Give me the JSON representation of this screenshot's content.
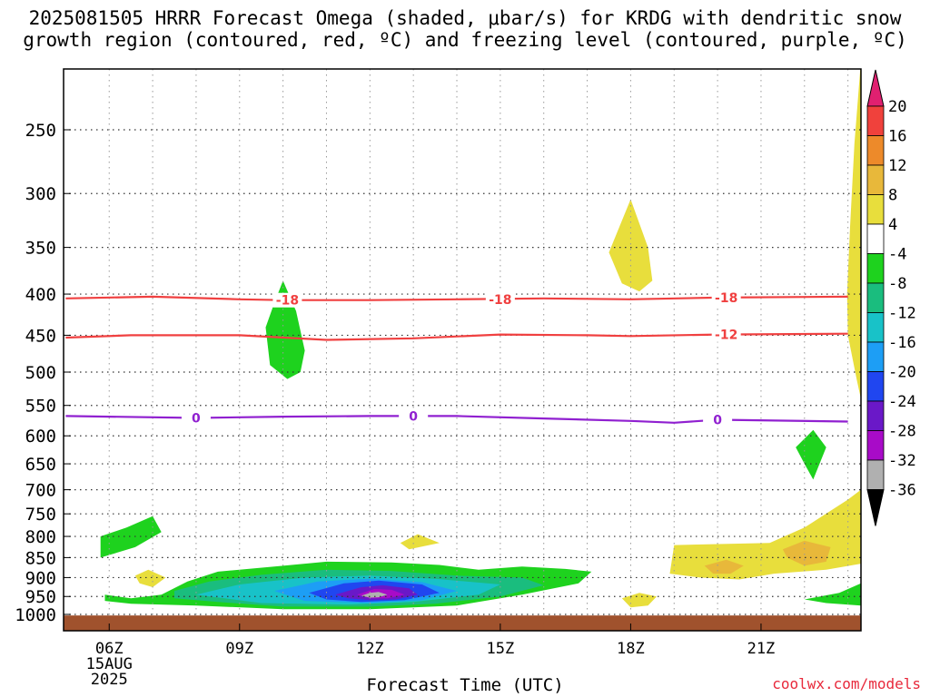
{
  "title_line1": "2025081505 HRRR Forecast Omega (shaded, μbar/s) for KRDG with dendritic snow",
  "title_line2": "growth region (contoured, red, ºC) and freezing level (contoured, purple, ºC)",
  "watermark": "coolwx.com/models",
  "chart_data": {
    "type": "heatmap",
    "xlabel": "Forecast Time (UTC)",
    "ylabel": "",
    "x_ticks": [
      "06Z",
      "09Z",
      "12Z",
      "15Z",
      "18Z",
      "21Z"
    ],
    "x_date_label": [
      "15AUG",
      "2025"
    ],
    "y_ticks": [
      250,
      300,
      350,
      400,
      450,
      500,
      550,
      600,
      650,
      700,
      750,
      800,
      850,
      900,
      950,
      1000
    ],
    "y_range_hpa": [
      200,
      1020
    ],
    "y_scale": "log",
    "grid": true,
    "colorbar": {
      "levels": [
        20,
        16,
        12,
        8,
        4,
        -4,
        -8,
        -12,
        -16,
        -20,
        -24,
        -28,
        -32,
        -36
      ],
      "colors": [
        "#e02070",
        "#f0413c",
        "#ed8a2a",
        "#e8b83a",
        "#e8de3c",
        "#ffffff",
        "#1ed21e",
        "#1abd7e",
        "#18c2c8",
        "#1d9ef5",
        "#2046f0",
        "#6a18c8",
        "#a80bc8",
        "#b0b0b0",
        "#000000"
      ]
    },
    "contours": [
      {
        "name": "dendritic snow growth -18",
        "color": "#f04040",
        "label": "-18",
        "points": [
          [
            5.0,
            405
          ],
          [
            7.0,
            403
          ],
          [
            9.0,
            406
          ],
          [
            10.0,
            407
          ],
          [
            12.0,
            407
          ],
          [
            14.0,
            406
          ],
          [
            16.0,
            405
          ],
          [
            18.0,
            406
          ],
          [
            20.0,
            404
          ],
          [
            23.0,
            403
          ]
        ]
      },
      {
        "name": "dendritic snow growth -12",
        "color": "#f04040",
        "label": "-12",
        "points": [
          [
            5.0,
            453
          ],
          [
            6.5,
            450
          ],
          [
            9.0,
            450
          ],
          [
            11.0,
            456
          ],
          [
            13.0,
            454
          ],
          [
            15.0,
            449
          ],
          [
            17.0,
            450
          ],
          [
            18.0,
            451
          ],
          [
            20.0,
            449
          ],
          [
            23.0,
            448
          ]
        ]
      },
      {
        "name": "freezing level 0",
        "color": "#9020d0",
        "label": "0",
        "points": [
          [
            5.0,
            567
          ],
          [
            8.0,
            570
          ],
          [
            10.0,
            568
          ],
          [
            12.0,
            567
          ],
          [
            14.0,
            567
          ],
          [
            16.0,
            571
          ],
          [
            18.0,
            575
          ],
          [
            19.0,
            578
          ],
          [
            20.0,
            573
          ],
          [
            23.0,
            576
          ]
        ]
      }
    ],
    "contour_label_positions": [
      {
        "label": "-18",
        "x": 10.1,
        "y": 407
      },
      {
        "label": "-18",
        "x": 15.0,
        "y": 406
      },
      {
        "label": "-18",
        "x": 20.2,
        "y": 404
      },
      {
        "label": "-12",
        "x": 20.2,
        "y": 449
      },
      {
        "label": "0",
        "x": 8.0,
        "y": 570
      },
      {
        "label": "0",
        "x": 13.0,
        "y": 567
      },
      {
        "label": "0",
        "x": 20.0,
        "y": 573
      }
    ],
    "omega_regions": [
      {
        "level": -4,
        "color": "#1ed21e",
        "points": [
          [
            10.0,
            385
          ],
          [
            10.3,
            420
          ],
          [
            10.5,
            470
          ],
          [
            10.4,
            500
          ],
          [
            10.1,
            510
          ],
          [
            9.7,
            490
          ],
          [
            9.6,
            440
          ],
          [
            9.8,
            410
          ]
        ]
      },
      {
        "level": -4,
        "color": "#1ed21e",
        "points": [
          [
            5.8,
            800
          ],
          [
            6.4,
            780
          ],
          [
            7.0,
            755
          ],
          [
            7.2,
            790
          ],
          [
            6.6,
            825
          ],
          [
            5.8,
            850
          ]
        ]
      },
      {
        "level": -4,
        "color": "#1ed21e",
        "points": [
          [
            5.9,
            945
          ],
          [
            6.5,
            955
          ],
          [
            7.2,
            945
          ],
          [
            7.8,
            910
          ],
          [
            8.5,
            885
          ],
          [
            10.0,
            870
          ],
          [
            11.0,
            860
          ],
          [
            12.5,
            862
          ],
          [
            13.6,
            868
          ],
          [
            14.5,
            880
          ],
          [
            15.5,
            872
          ],
          [
            16.5,
            878
          ],
          [
            17.1,
            885
          ],
          [
            16.8,
            915
          ],
          [
            15.5,
            945
          ],
          [
            14.0,
            975
          ],
          [
            12.0,
            985
          ],
          [
            10.0,
            985
          ],
          [
            8.0,
            975
          ],
          [
            6.5,
            970
          ],
          [
            5.9,
            962
          ]
        ]
      },
      {
        "level": -4,
        "color": "#1ed21e",
        "points": [
          [
            22.2,
            590
          ],
          [
            22.5,
            620
          ],
          [
            22.2,
            680
          ],
          [
            22.0,
            650
          ],
          [
            21.8,
            620
          ]
        ]
      },
      {
        "level": -4,
        "color": "#1ed21e",
        "points": [
          [
            22.0,
            958
          ],
          [
            22.8,
            940
          ],
          [
            23.3,
            915
          ],
          [
            23.3,
            975
          ],
          [
            22.5,
            968
          ]
        ]
      },
      {
        "level": -8,
        "color": "#1abd7e",
        "points": [
          [
            7.5,
            935
          ],
          [
            8.3,
            910
          ],
          [
            9.5,
            893
          ],
          [
            11.0,
            880
          ],
          [
            12.5,
            883
          ],
          [
            14.0,
            895
          ],
          [
            15.5,
            900
          ],
          [
            16.0,
            920
          ],
          [
            15.0,
            950
          ],
          [
            13.5,
            970
          ],
          [
            12.0,
            978
          ],
          [
            10.0,
            978
          ],
          [
            8.5,
            965
          ],
          [
            7.5,
            955
          ]
        ]
      },
      {
        "level": -12,
        "color": "#18c2c8",
        "points": [
          [
            8.0,
            945
          ],
          [
            9.0,
            918
          ],
          [
            10.5,
            900
          ],
          [
            12.0,
            895
          ],
          [
            13.5,
            903
          ],
          [
            15.0,
            918
          ],
          [
            14.5,
            945
          ],
          [
            13.0,
            965
          ],
          [
            11.5,
            972
          ],
          [
            9.5,
            968
          ]
        ]
      },
      {
        "level": -16,
        "color": "#1d9ef5",
        "points": [
          [
            9.8,
            935
          ],
          [
            10.8,
            910
          ],
          [
            12.0,
            903
          ],
          [
            13.2,
            912
          ],
          [
            14.0,
            935
          ],
          [
            13.2,
            960
          ],
          [
            12.0,
            968
          ],
          [
            10.5,
            962
          ]
        ]
      },
      {
        "level": -20,
        "color": "#2046f0",
        "points": [
          [
            10.6,
            940
          ],
          [
            11.4,
            915
          ],
          [
            12.2,
            908
          ],
          [
            13.2,
            918
          ],
          [
            13.6,
            940
          ],
          [
            12.8,
            960
          ],
          [
            11.8,
            965
          ],
          [
            11.0,
            958
          ]
        ]
      },
      {
        "level": -24,
        "color": "#6a18c8",
        "points": [
          [
            11.2,
            945
          ],
          [
            11.8,
            925
          ],
          [
            12.3,
            920
          ],
          [
            12.9,
            928
          ],
          [
            13.1,
            945
          ],
          [
            12.6,
            958
          ],
          [
            12.0,
            960
          ],
          [
            11.5,
            955
          ]
        ]
      },
      {
        "level": -28,
        "color": "#a80bc8",
        "points": [
          [
            11.7,
            945
          ],
          [
            12.1,
            930
          ],
          [
            12.5,
            932
          ],
          [
            12.8,
            945
          ],
          [
            12.4,
            955
          ],
          [
            12.0,
            955
          ]
        ]
      },
      {
        "level": -32,
        "color": "#b0b0b0",
        "points": [
          [
            11.8,
            948
          ],
          [
            12.0,
            940
          ],
          [
            12.2,
            938
          ],
          [
            12.4,
            945
          ],
          [
            12.2,
            952
          ],
          [
            12.0,
            953
          ]
        ]
      },
      {
        "level": 4,
        "color": "#e8de3c",
        "points": [
          [
            18.0,
            305
          ],
          [
            18.4,
            350
          ],
          [
            18.5,
            385
          ],
          [
            18.2,
            397
          ],
          [
            17.8,
            388
          ],
          [
            17.5,
            355
          ]
        ]
      },
      {
        "level": 4,
        "color": "#e8de3c",
        "points": [
          [
            6.6,
            895
          ],
          [
            6.9,
            880
          ],
          [
            7.3,
            900
          ],
          [
            7.0,
            925
          ],
          [
            6.7,
            915
          ]
        ]
      },
      {
        "level": 4,
        "color": "#e8de3c",
        "points": [
          [
            12.7,
            815
          ],
          [
            13.1,
            795
          ],
          [
            13.6,
            815
          ],
          [
            12.9,
            830
          ]
        ]
      },
      {
        "level": 4,
        "color": "#e8de3c",
        "points": [
          [
            17.8,
            955
          ],
          [
            18.2,
            940
          ],
          [
            18.6,
            950
          ],
          [
            18.4,
            975
          ],
          [
            18.0,
            980
          ]
        ]
      },
      {
        "level": 4,
        "color": "#e8de3c",
        "points": [
          [
            19.0,
            820
          ],
          [
            21.2,
            815
          ],
          [
            22.0,
            780
          ],
          [
            23.0,
            720
          ],
          [
            23.3,
            700
          ],
          [
            23.3,
            865
          ],
          [
            22.5,
            880
          ],
          [
            21.3,
            890
          ],
          [
            20.5,
            905
          ],
          [
            19.6,
            900
          ],
          [
            18.9,
            890
          ]
        ]
      },
      {
        "level": 4,
        "color": "#e8de3c",
        "points": [
          [
            23.3,
            205
          ],
          [
            23.15,
            260
          ],
          [
            23.05,
            330
          ],
          [
            22.98,
            400
          ],
          [
            23.0,
            450
          ],
          [
            23.2,
            510
          ],
          [
            23.3,
            540
          ]
        ]
      },
      {
        "level": 8,
        "color": "#e8b83a",
        "points": [
          [
            19.7,
            870
          ],
          [
            20.2,
            855
          ],
          [
            20.6,
            870
          ],
          [
            20.3,
            890
          ],
          [
            19.9,
            890
          ]
        ]
      },
      {
        "level": 8,
        "color": "#e8b83a",
        "points": [
          [
            21.5,
            830
          ],
          [
            22.0,
            810
          ],
          [
            22.6,
            825
          ],
          [
            22.5,
            860
          ],
          [
            22.0,
            870
          ],
          [
            21.6,
            850
          ]
        ]
      }
    ],
    "ground": {
      "color": "#a0522d",
      "y_top_hpa": 1003
    }
  }
}
